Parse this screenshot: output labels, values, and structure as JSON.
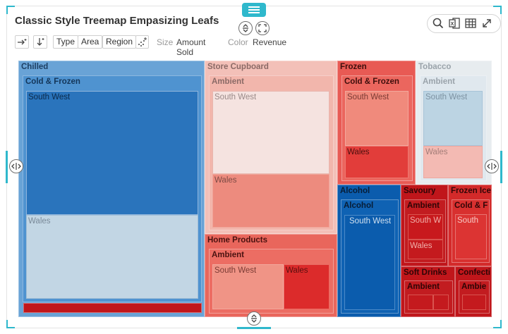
{
  "title": "Classic Style Treemap Empasizing Leafs",
  "controls": {
    "type_label": "Type",
    "area_label": "Area",
    "region_label": "Region",
    "size_caption": "Size",
    "size_value": "Amount Sold",
    "color_caption": "Color",
    "color_value": "Revenue"
  },
  "icons": {
    "expand_icon": "expand-arrow-icon",
    "sort_icon": "sort-down-icon",
    "scatter_icon": "sparkle-icon",
    "search_icon": "search-icon",
    "export_icon": "excel-export-icon",
    "grid_icon": "table-icon",
    "fullscreen_icon": "fullscreen-icon"
  },
  "colors": {
    "accent": "#2fb8cc",
    "blue_dark": "#0b5cad",
    "blue_mid": "#3a83c9",
    "blue_light": "#c2d6e4",
    "red_dark": "#c0161b",
    "red_mid": "#e24a45",
    "red_light": "#f4c2bb"
  },
  "treemap": {
    "chilled": "Chilled",
    "chilled_cf": "Cold & Frozen",
    "chilled_cf_sw": "South West",
    "chilled_cf_wales": "Wales",
    "store_cupboard": "Store Cupboard",
    "sc_ambient": "Ambient",
    "sc_ambient_sw": "South West",
    "sc_ambient_wales": "Wales",
    "home_products": "Home Products",
    "hp_ambient": "Ambient",
    "hp_ambient_sw": "South West",
    "hp_ambient_wales": "Wales",
    "frozen": "Frozen",
    "frozen_cf": "Cold & Frozen",
    "frozen_cf_sw": "South West",
    "frozen_cf_wales": "Wales",
    "tobacco": "Tobacco",
    "tob_ambient": "Ambient",
    "tob_ambient_sw": "South West",
    "tob_ambient_wales": "Wales",
    "alcohol": "Alcohol",
    "alc_alcohol": "Alcohol",
    "alc_sw": "South West",
    "savoury": "Savoury",
    "sav_ambient": "Ambient",
    "sav_sw": "South W",
    "sav_wales": "Wales",
    "frozen_ice": "Frozen Ice",
    "fi_cf": "Cold & F",
    "fi_south": "South",
    "soft_drinks": "Soft Drinks",
    "sd_ambient": "Ambient",
    "confecti": "Confecti",
    "conf_ambient": "Ambie"
  }
}
